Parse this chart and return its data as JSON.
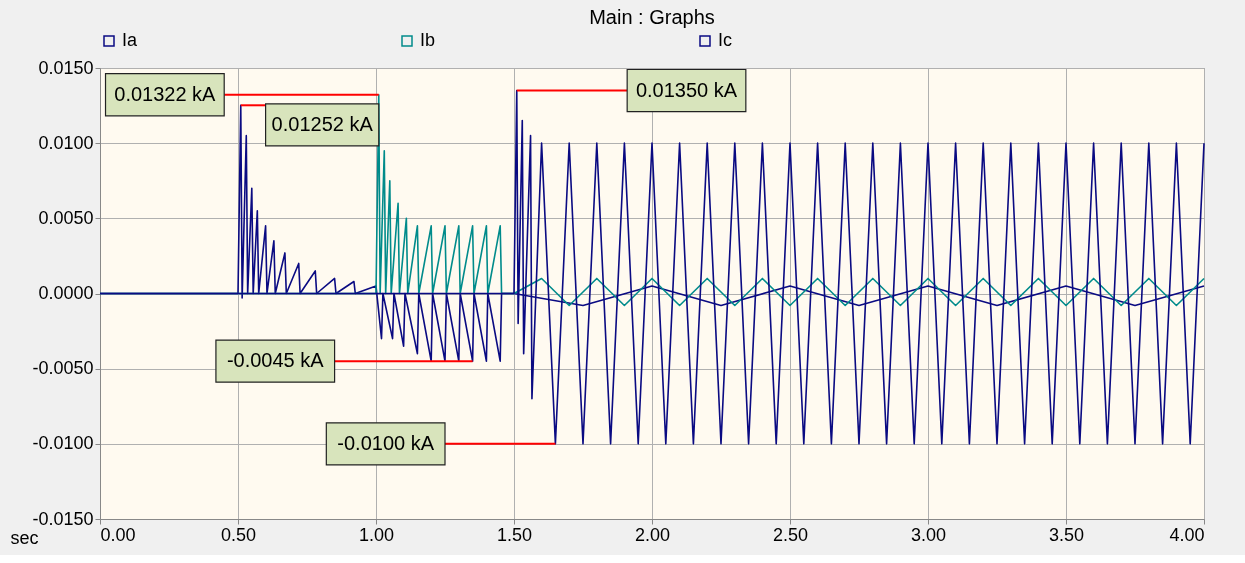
{
  "chart_data": {
    "type": "line",
    "title": "Main : Graphs",
    "xlabel": "sec",
    "xlim": [
      0,
      4
    ],
    "ylim": [
      -0.015,
      0.015
    ],
    "xticks": [
      {
        "value": 0,
        "label": "0.00"
      },
      {
        "value": 0.5,
        "label": "0.50"
      },
      {
        "value": 1,
        "label": "1.00"
      },
      {
        "value": 1.5,
        "label": "1.50"
      },
      {
        "value": 2,
        "label": "2.00"
      },
      {
        "value": 2.5,
        "label": "2.50"
      },
      {
        "value": 3,
        "label": "3.00"
      },
      {
        "value": 3.5,
        "label": "3.50"
      },
      {
        "value": 4,
        "label": "4.00"
      }
    ],
    "yticks": [
      {
        "value": -0.015,
        "label": "-0.0150"
      },
      {
        "value": -0.01,
        "label": "-0.0100"
      },
      {
        "value": -0.005,
        "label": "-0.0050"
      },
      {
        "value": 0,
        "label": "0.0000"
      },
      {
        "value": 0.005,
        "label": "0.0050"
      },
      {
        "value": 0.01,
        "label": "0.0100"
      },
      {
        "value": 0.015,
        "label": "0.0150"
      }
    ],
    "grid": true,
    "legend": "top",
    "line_style": "solid",
    "series": [
      {
        "name": "Ia",
        "color": "#0a0a82",
        "x": [
          0,
          0.5,
          0.51,
          0.515,
          0.53,
          0.535,
          0.55,
          0.555,
          0.57,
          0.575,
          0.6,
          0.605,
          0.63,
          0.635,
          0.67,
          0.675,
          0.72,
          0.725,
          0.78,
          0.785,
          0.85,
          0.855,
          0.92,
          0.925,
          1.0,
          1.02,
          1.025,
          1.06,
          1.065,
          1.1,
          1.105,
          1.15,
          1.155,
          1.2,
          1.205,
          1.25,
          1.255,
          1.3,
          1.305,
          1.35,
          1.355,
          1.4,
          1.405,
          1.45,
          1.455,
          1.5,
          1.75,
          2.0,
          2.25,
          2.5,
          2.75,
          3.0,
          3.25,
          3.5,
          3.75,
          4.0
        ],
        "values": [
          0,
          0,
          0.01252,
          -0.0003,
          0.0105,
          0,
          0.007,
          0,
          0.0055,
          0,
          0.0045,
          0,
          0.0035,
          0,
          0.0027,
          0,
          0.002,
          0,
          0.0015,
          0,
          0.001,
          0,
          0.0008,
          0,
          0.0005,
          -0.003,
          0,
          -0.003,
          0,
          -0.0035,
          0,
          -0.004,
          0,
          -0.0045,
          0,
          -0.0045,
          0,
          -0.0045,
          0,
          -0.0045,
          0,
          -0.0045,
          0,
          -0.0045,
          0,
          0,
          -0.0008,
          0.0005,
          -0.0008,
          0.0005,
          -0.0008,
          0.0005,
          -0.0008,
          0.0005,
          -0.0008,
          0.0005
        ]
      },
      {
        "name": "Ib",
        "color": "#008b8b",
        "x": [
          0,
          1.0,
          1.01,
          1.015,
          1.03,
          1.035,
          1.05,
          1.055,
          1.08,
          1.085,
          1.11,
          1.115,
          1.15,
          1.155,
          1.2,
          1.205,
          1.25,
          1.255,
          1.3,
          1.305,
          1.35,
          1.355,
          1.4,
          1.405,
          1.45,
          1.455,
          1.5,
          1.6,
          1.7,
          1.8,
          1.9,
          2.0,
          2.1,
          2.2,
          2.3,
          2.4,
          2.5,
          2.6,
          2.7,
          2.8,
          2.9,
          3.0,
          3.1,
          3.2,
          3.3,
          3.4,
          3.5,
          3.6,
          3.7,
          3.8,
          3.9,
          4.0
        ],
        "values": [
          0,
          0,
          0.01322,
          0,
          0.0095,
          0,
          0.0075,
          0,
          0.006,
          0,
          0.005,
          0,
          0.0045,
          0,
          0.0045,
          0,
          0.0045,
          0,
          0.0045,
          0,
          0.0045,
          0,
          0.0045,
          0,
          0.0045,
          0,
          0,
          0.001,
          -0.0008,
          0.001,
          -0.0008,
          0.001,
          -0.0008,
          0.001,
          -0.0008,
          0.001,
          -0.0008,
          0.001,
          -0.0008,
          0.001,
          -0.0008,
          0.001,
          -0.0008,
          0.001,
          -0.0008,
          0.001,
          -0.0008,
          0.001,
          -0.0008,
          0.001,
          -0.0008,
          0.001
        ]
      },
      {
        "name": "Ic",
        "color": "#0a0a82",
        "x": [
          0,
          1.5,
          1.51,
          1.515,
          1.53,
          1.535,
          1.56,
          1.565,
          1.6,
          1.65,
          1.7,
          1.75,
          1.8,
          1.85,
          1.9,
          1.95,
          2.0,
          2.05,
          2.1,
          2.15,
          2.2,
          2.25,
          2.3,
          2.35,
          2.4,
          2.45,
          2.5,
          2.55,
          2.6,
          2.65,
          2.7,
          2.75,
          2.8,
          2.85,
          2.9,
          2.95,
          3.0,
          3.05,
          3.1,
          3.15,
          3.2,
          3.25,
          3.3,
          3.35,
          3.4,
          3.45,
          3.5,
          3.55,
          3.6,
          3.65,
          3.7,
          3.75,
          3.8,
          3.85,
          3.9,
          3.95,
          4.0
        ],
        "values": [
          0,
          0,
          0.0135,
          -0.002,
          0.0115,
          -0.004,
          0.0105,
          -0.007,
          0.01,
          -0.01,
          0.01,
          -0.01,
          0.01,
          -0.01,
          0.01,
          -0.01,
          0.01,
          -0.01,
          0.01,
          -0.01,
          0.01,
          -0.01,
          0.01,
          -0.01,
          0.01,
          -0.01,
          0.01,
          -0.01,
          0.01,
          -0.01,
          0.01,
          -0.01,
          0.01,
          -0.01,
          0.01,
          -0.01,
          0.01,
          -0.01,
          0.01,
          -0.01,
          0.01,
          -0.01,
          0.01,
          -0.01,
          0.01,
          -0.01,
          0.01,
          -0.01,
          0.01,
          -0.01,
          0.01,
          -0.01,
          0.01,
          -0.01,
          0.01,
          -0.01,
          0.01
        ]
      }
    ],
    "annotations": [
      {
        "text": "0.01322 kA",
        "x": 1.01,
        "y": 0.01322
      },
      {
        "text": "0.01252 kA",
        "x": 0.51,
        "y": 0.01252
      },
      {
        "text": "0.01350 kA",
        "x": 1.51,
        "y": 0.0135
      },
      {
        "text": "-0.0045 kA",
        "x": 1.35,
        "y": -0.0045
      },
      {
        "text": "-0.0100 kA",
        "x": 1.65,
        "y": -0.01
      }
    ]
  }
}
